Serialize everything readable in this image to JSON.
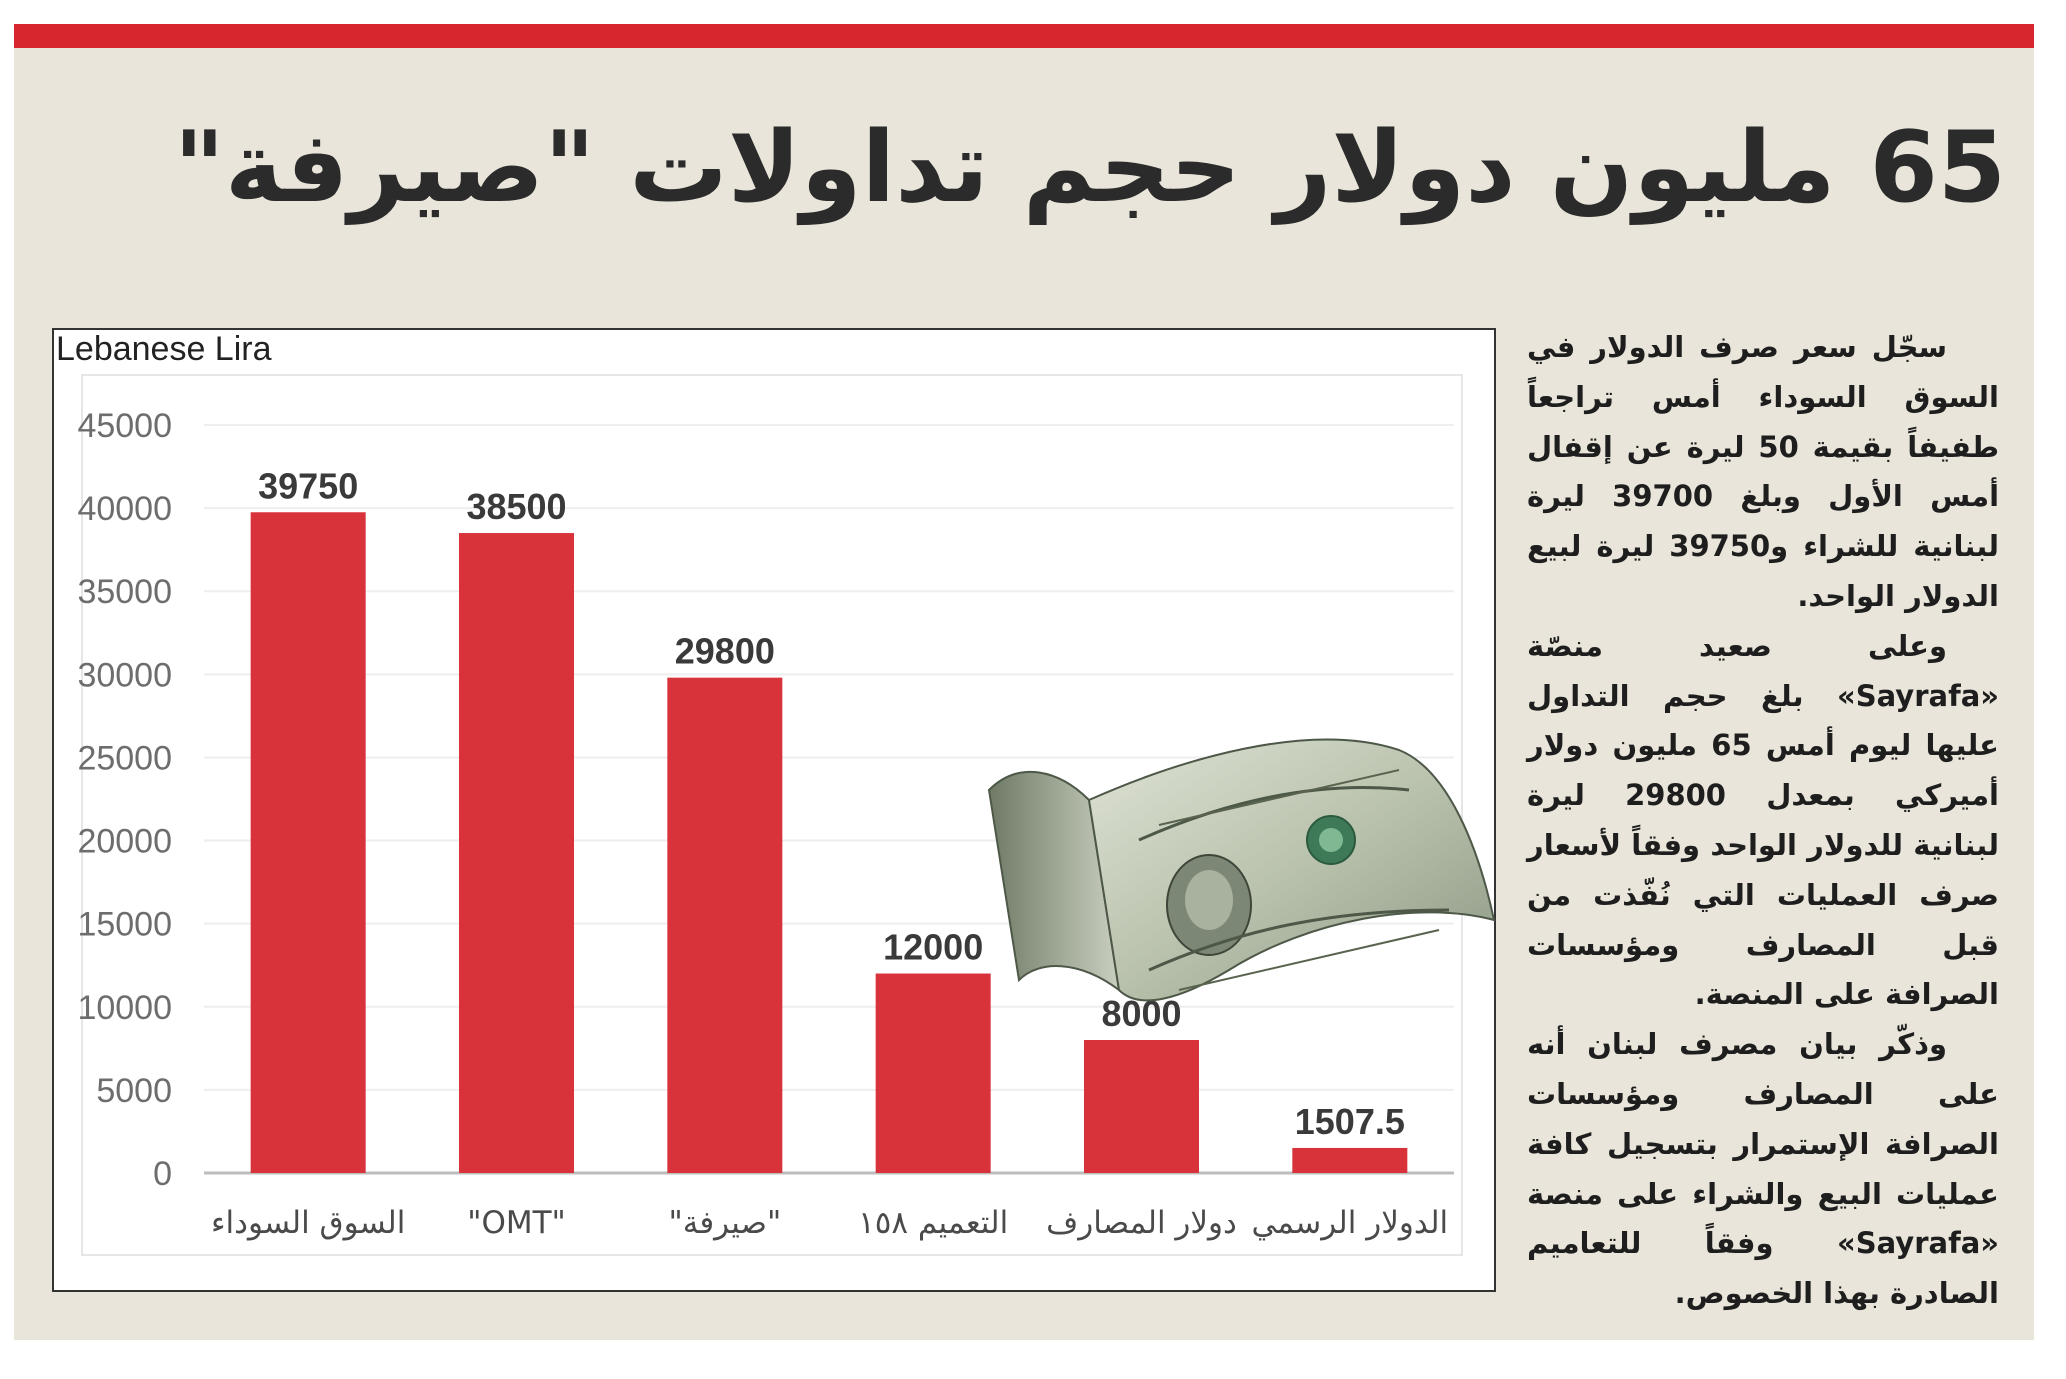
{
  "headline": "65 مليون دولار حجم تداولات \"صيرفة\"",
  "colors": {
    "accent": "#d8262e",
    "background": "#e9e5da",
    "bar": "#d8323a"
  },
  "article": {
    "paragraphs": [
      "سجّل سعر صرف الدولار في السوق السوداء أمس تراجعاً طفيفاً بقيمة 50 ليرة عن إقفال أمس الأول وبلغ 39700 ليرة لبنانية للشراء و39750 ليرة لبيع الدولار الواحد.",
      "وعلى صعيد منصّة «Sayrafa» بلغ حجم التداول عليها ليوم أمس 65 مليون دولار أميركي بمعدل 29800 ليرة لبنانية للدولار الواحد وفقاً لأسعار صرف العمليات التي نُفّذت من قبل المصارف ومؤسسات الصرافة على المنصة.",
      "وذكّر بيان مصرف لبنان أنه على المصارف ومؤسسات الصرافة الإستمرار بتسجيل كافة عمليات البيع والشراء على منصة «Sayrafa» وفقاً للتعاميم الصادرة بهذا الخصوص."
    ]
  },
  "image": {
    "icon": "dollar-bill-icon"
  },
  "chart_data": {
    "type": "bar",
    "title": "",
    "ylabel": "Lebanese Lira",
    "xlabel": "",
    "categories": [
      "السوق السوداء",
      "\"OMT\"",
      "\"صيرفة\"",
      "التعميم ١٥٨",
      "دولار المصارف",
      "الدولار الرسمي"
    ],
    "values": [
      39750,
      38500,
      29800,
      12000,
      8000,
      1507.5
    ],
    "value_labels": [
      "39750",
      "38500",
      "29800",
      "12000",
      "8000",
      "1507.5"
    ],
    "ylim": [
      0,
      45000
    ],
    "yticks": [
      0,
      5000,
      10000,
      15000,
      20000,
      25000,
      30000,
      35000,
      40000,
      45000
    ],
    "grid": true,
    "legend": "none"
  }
}
